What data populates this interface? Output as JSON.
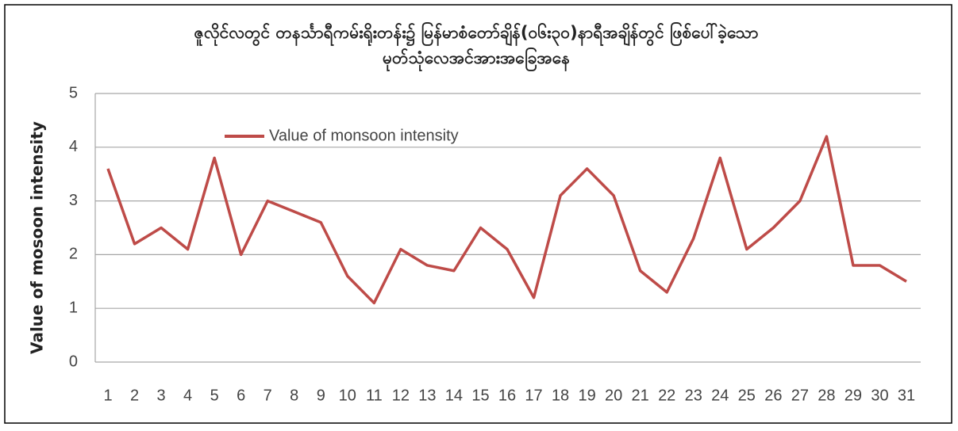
{
  "chart_data": {
    "type": "line",
    "title": "ဇူလိုင်လတွင် တနင်္သာရီကမ်းရိုးတန်း၌ မြန်မာစံတော်ချိန်(၀၆း၃၀)နာရီအချိန်တွင် ဖြစ်ပေါ်ခဲ့သော",
    "subtitle": "မုတ်သုံလေအင်အားအခြေအနေ",
    "y_label": "Value of mosoon intensity",
    "categories": [
      "1",
      "2",
      "3",
      "4",
      "5",
      "6",
      "7",
      "8",
      "9",
      "10",
      "11",
      "12",
      "13",
      "14",
      "15",
      "16",
      "17",
      "18",
      "19",
      "20",
      "21",
      "22",
      "23",
      "24",
      "25",
      "26",
      "27",
      "28",
      "29",
      "30",
      "31"
    ],
    "series": [
      {
        "name": "Value of monsoon intensity",
        "color": "#be4b48",
        "values": [
          3.6,
          2.2,
          2.5,
          2.1,
          3.8,
          2.0,
          3.0,
          2.8,
          2.6,
          1.6,
          1.1,
          2.1,
          1.8,
          1.7,
          2.5,
          2.1,
          1.2,
          3.1,
          3.6,
          3.1,
          1.7,
          1.3,
          2.3,
          3.8,
          2.1,
          2.5,
          3.0,
          4.2,
          1.8,
          1.8,
          1.5
        ]
      }
    ],
    "ylim": [
      0,
      5
    ],
    "yticks": [
      0,
      1,
      2,
      3,
      4,
      5
    ],
    "grid": true,
    "legend": "top-left"
  }
}
